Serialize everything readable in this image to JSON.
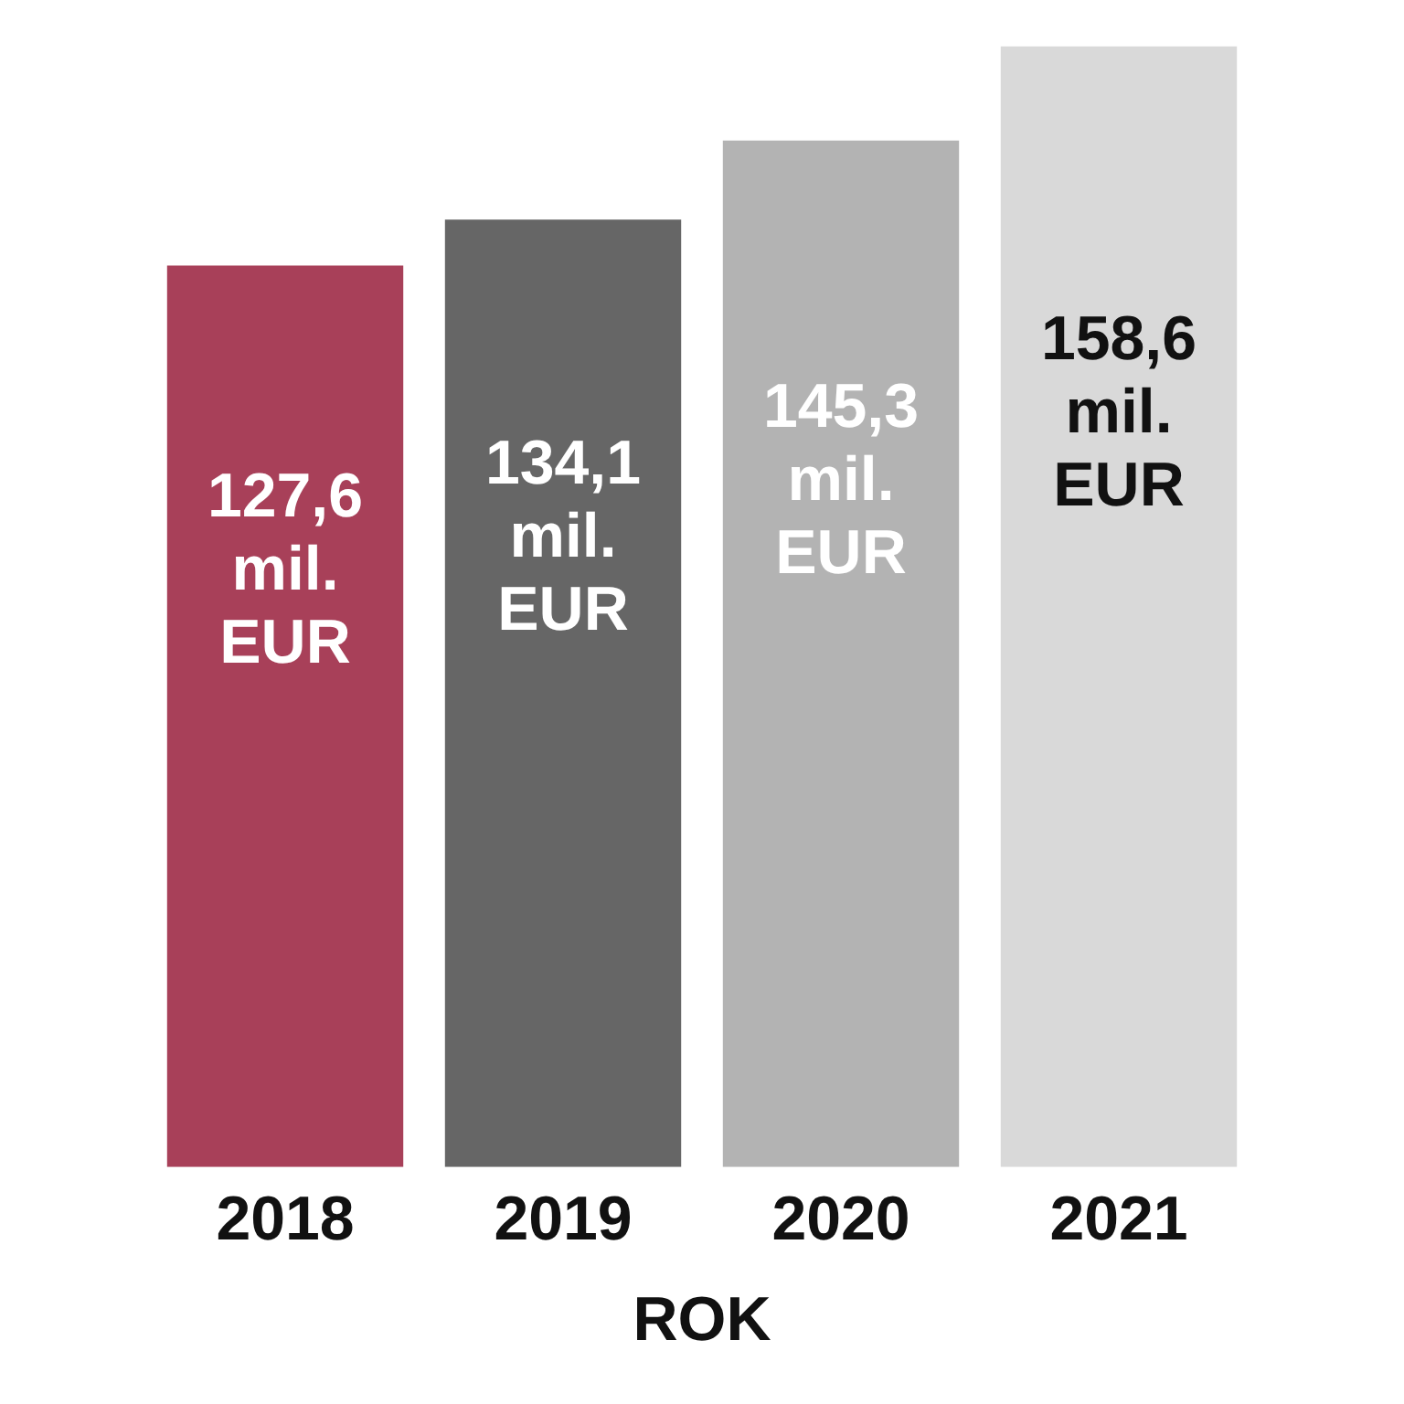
{
  "chart_data": {
    "type": "bar",
    "xlabel": "ROK",
    "categories": [
      "2018",
      "2019",
      "2020",
      "2021"
    ],
    "values": [
      127.6,
      134.1,
      145.3,
      158.6
    ],
    "colors": [
      "#a84059",
      "#666666",
      "#b3b3b3",
      "#d9d9d9"
    ],
    "value_labels": [
      "127,6 mil. EUR",
      "134,1 mil. EUR",
      "145,3 mil. EUR",
      "158,6 mil. EUR"
    ],
    "grid": false,
    "legend": false
  }
}
